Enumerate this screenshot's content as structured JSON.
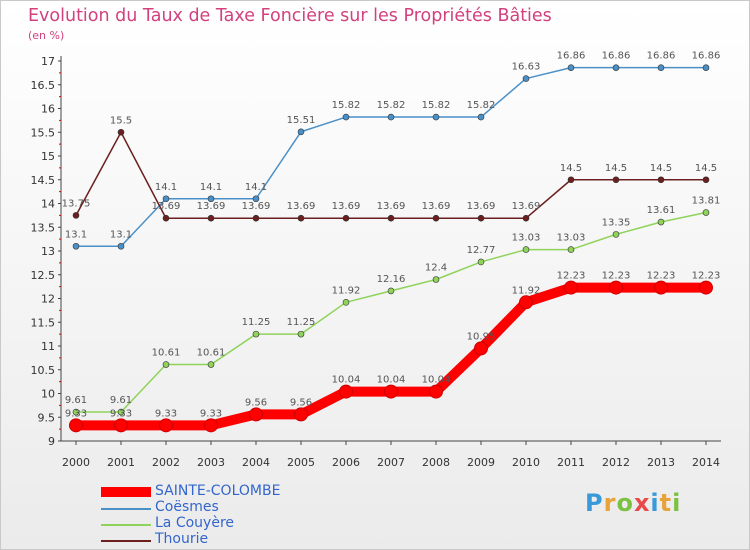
{
  "title": "Evolution du Taux de Taxe Foncière sur les Propriétés Bâties",
  "subtitle": "(en %)",
  "logo": {
    "letters": [
      "P",
      "r",
      "o",
      "x",
      "i",
      "t",
      "i"
    ],
    "colors": [
      "#3a9ad9",
      "#e8a23a",
      "#7cc242",
      "#e84a4a",
      "#3a9ad9",
      "#e8a23a",
      "#7cc242"
    ]
  },
  "chart_data": {
    "type": "line",
    "title": "Evolution du Taux de Taxe Foncière sur les Propriétés Bâties",
    "ylabel": "(en %)",
    "ylim": [
      9,
      17
    ],
    "yticks": [
      "9",
      "9.5",
      "10",
      "10.5",
      "11",
      "11.5",
      "12",
      "12.5",
      "13",
      "13.5",
      "14",
      "14.5",
      "15",
      "15.5",
      "16",
      "16.5",
      "17"
    ],
    "categories": [
      "2000",
      "2001",
      "2002",
      "2003",
      "2004",
      "2005",
      "2006",
      "2007",
      "2008",
      "2009",
      "2010",
      "2011",
      "2012",
      "2013",
      "2014"
    ],
    "series": [
      {
        "name": "SAINTE-COLOMBE",
        "color": "#ff0000",
        "highlight": true,
        "values": [
          9.33,
          9.33,
          9.33,
          9.33,
          9.56,
          9.56,
          10.04,
          10.04,
          10.04,
          10.95,
          11.92,
          12.23,
          12.23,
          12.23,
          12.23
        ],
        "labels": [
          "9.33",
          "9.33",
          "9.33",
          "9.33",
          "9.56",
          "9.56",
          "10.04",
          "10.04",
          "10.04",
          "10.95",
          "11.92",
          "12.23",
          "12.23",
          "12.23",
          "12.23"
        ]
      },
      {
        "name": "Coësmes",
        "color": "#4a90c8",
        "values": [
          13.1,
          13.1,
          14.1,
          14.1,
          14.1,
          15.51,
          15.82,
          15.82,
          15.82,
          15.82,
          16.63,
          16.86,
          16.86,
          16.86,
          16.86
        ],
        "labels": [
          "13.1",
          "13.1",
          "14.1",
          "14.1",
          "14.1",
          "15.51",
          "15.82",
          "15.82",
          "15.82",
          "15.82",
          "16.63",
          "16.86",
          "16.86",
          "16.86",
          "16.86"
        ]
      },
      {
        "name": "La Couyère",
        "color": "#8fd35a",
        "values": [
          9.61,
          9.61,
          10.61,
          10.61,
          11.25,
          11.25,
          11.92,
          12.16,
          12.4,
          12.77,
          13.03,
          13.03,
          13.35,
          13.61,
          13.81
        ],
        "labels": [
          "9.61",
          "9.61",
          "10.61",
          "10.61",
          "11.25",
          "11.25",
          "11.92",
          "12.16",
          "12.4",
          "12.77",
          "13.03",
          "13.03",
          "13.35",
          "13.61",
          "13.81"
        ]
      },
      {
        "name": "Thourie",
        "color": "#6b1f1f",
        "values": [
          13.75,
          15.5,
          13.69,
          13.69,
          13.69,
          13.69,
          13.69,
          13.69,
          13.69,
          13.69,
          13.69,
          14.5,
          14.5,
          14.5,
          14.5
        ],
        "labels": [
          "13.75",
          "15.5",
          "13.69",
          "13.69",
          "13.69",
          "13.69",
          "13.69",
          "13.69",
          "13.69",
          "13.69",
          "13.69",
          "14.5",
          "14.5",
          "14.5",
          "14.5"
        ]
      }
    ],
    "legend_position": "bottom-left",
    "grid": false
  }
}
